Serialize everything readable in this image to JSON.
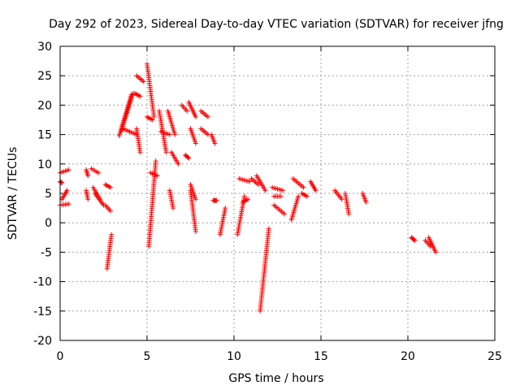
{
  "chart_data": {
    "type": "scatter",
    "title": "Day 292 of 2023, Sidereal Day-to-day VTEC variation (SDTVAR) for receiver jfng",
    "xlabel": "GPS time / hours",
    "ylabel": "SDTVAR / TECUs",
    "xlim": [
      0,
      25
    ],
    "ylim": [
      -20,
      30
    ],
    "xticks": [
      0,
      5,
      10,
      15,
      20,
      25
    ],
    "yticks": [
      -20,
      -15,
      -10,
      -5,
      0,
      5,
      10,
      15,
      20,
      25,
      30
    ],
    "grid": true,
    "marker": "+",
    "color": "#ff0000",
    "segments": [
      {
        "x": [
          0.0,
          0.5
        ],
        "y": [
          8.5,
          9.0
        ]
      },
      {
        "x": [
          0.0,
          0.5
        ],
        "y": [
          3.0,
          3.2
        ]
      },
      {
        "x": [
          0.1,
          0.4
        ],
        "y": [
          4.0,
          5.5
        ]
      },
      {
        "x": [
          0.0,
          0.1
        ],
        "y": [
          7.0,
          6.8
        ]
      },
      {
        "x": [
          1.5,
          1.6
        ],
        "y": [
          9.0,
          8.0
        ]
      },
      {
        "x": [
          1.5,
          1.6
        ],
        "y": [
          5.5,
          4.0
        ]
      },
      {
        "x": [
          1.8,
          2.2
        ],
        "y": [
          9.2,
          8.5
        ]
      },
      {
        "x": [
          1.9,
          2.3
        ],
        "y": [
          6.0,
          4.0
        ]
      },
      {
        "x": [
          2.0,
          2.5
        ],
        "y": [
          5.0,
          3.0
        ]
      },
      {
        "x": [
          2.6,
          2.9
        ],
        "y": [
          3.0,
          2.0
        ]
      },
      {
        "x": [
          2.6,
          2.9
        ],
        "y": [
          6.5,
          6.0
        ]
      },
      {
        "x": [
          2.7,
          2.95
        ],
        "y": [
          -7.8,
          -2.0
        ]
      },
      {
        "x": [
          3.4,
          4.1
        ],
        "y": [
          14.8,
          21.8
        ]
      },
      {
        "x": [
          3.5,
          4.2
        ],
        "y": [
          15.5,
          22.0
        ]
      },
      {
        "x": [
          3.6,
          4.4
        ],
        "y": [
          16.0,
          15.0
        ]
      },
      {
        "x": [
          4.4,
          4.8
        ],
        "y": [
          25.0,
          24.0
        ]
      },
      {
        "x": [
          4.3,
          4.6
        ],
        "y": [
          22.0,
          21.5
        ]
      },
      {
        "x": [
          4.4,
          4.6
        ],
        "y": [
          16.0,
          12.0
        ]
      },
      {
        "x": [
          5.0,
          5.4
        ],
        "y": [
          27.0,
          18.0
        ]
      },
      {
        "x": [
          5.0,
          5.3
        ],
        "y": [
          18.0,
          17.5
        ]
      },
      {
        "x": [
          5.1,
          5.5
        ],
        "y": [
          -4.0,
          10.5
        ]
      },
      {
        "x": [
          5.2,
          5.6
        ],
        "y": [
          8.5,
          8.0
        ]
      },
      {
        "x": [
          5.7,
          6.1
        ],
        "y": [
          19.0,
          12.0
        ]
      },
      {
        "x": [
          5.8,
          6.3
        ],
        "y": [
          15.5,
          15.0
        ]
      },
      {
        "x": [
          6.2,
          6.6
        ],
        "y": [
          19.0,
          15.0
        ]
      },
      {
        "x": [
          6.4,
          6.8
        ],
        "y": [
          12.0,
          10.0
        ]
      },
      {
        "x": [
          6.3,
          6.5
        ],
        "y": [
          5.5,
          2.5
        ]
      },
      {
        "x": [
          7.2,
          7.4
        ],
        "y": [
          11.5,
          11.0
        ]
      },
      {
        "x": [
          7.0,
          7.3
        ],
        "y": [
          20.0,
          19.0
        ]
      },
      {
        "x": [
          7.4,
          7.8
        ],
        "y": [
          20.5,
          18.0
        ]
      },
      {
        "x": [
          7.5,
          7.8
        ],
        "y": [
          16.0,
          13.5
        ]
      },
      {
        "x": [
          7.5,
          7.8
        ],
        "y": [
          6.5,
          4.0
        ]
      },
      {
        "x": [
          7.5,
          7.8
        ],
        "y": [
          5.5,
          -1.5
        ]
      },
      {
        "x": [
          8.1,
          8.5
        ],
        "y": [
          19.0,
          18.0
        ]
      },
      {
        "x": [
          8.1,
          8.5
        ],
        "y": [
          16.0,
          15.0
        ]
      },
      {
        "x": [
          8.7,
          8.9
        ],
        "y": [
          15.0,
          13.5
        ]
      },
      {
        "x": [
          8.8,
          9.0
        ],
        "y": [
          3.8,
          3.8
        ]
      },
      {
        "x": [
          9.2,
          9.5
        ],
        "y": [
          -2.0,
          2.5
        ]
      },
      {
        "x": [
          10.2,
          10.6
        ],
        "y": [
          -2.0,
          4.5
        ]
      },
      {
        "x": [
          10.3,
          10.9
        ],
        "y": [
          7.5,
          7.0
        ]
      },
      {
        "x": [
          10.5,
          10.8
        ],
        "y": [
          3.5,
          4.0
        ]
      },
      {
        "x": [
          11.0,
          11.4
        ],
        "y": [
          7.5,
          6.5
        ]
      },
      {
        "x": [
          11.3,
          11.8
        ],
        "y": [
          8.0,
          5.5
        ]
      },
      {
        "x": [
          11.5,
          12.0
        ],
        "y": [
          -15.0,
          -1.0
        ]
      },
      {
        "x": [
          12.2,
          12.8
        ],
        "y": [
          6.0,
          5.5
        ]
      },
      {
        "x": [
          12.3,
          12.7
        ],
        "y": [
          4.5,
          4.5
        ]
      },
      {
        "x": [
          12.3,
          12.9
        ],
        "y": [
          3.0,
          1.5
        ]
      },
      {
        "x": [
          13.3,
          13.7
        ],
        "y": [
          0.5,
          4.5
        ]
      },
      {
        "x": [
          13.4,
          14.0
        ],
        "y": [
          7.5,
          6.0
        ]
      },
      {
        "x": [
          13.9,
          14.2
        ],
        "y": [
          5.0,
          4.5
        ]
      },
      {
        "x": [
          14.4,
          14.7
        ],
        "y": [
          7.0,
          5.5
        ]
      },
      {
        "x": [
          15.8,
          16.2
        ],
        "y": [
          5.5,
          4.0
        ]
      },
      {
        "x": [
          16.4,
          16.6
        ],
        "y": [
          5.0,
          1.5
        ]
      },
      {
        "x": [
          17.4,
          17.6
        ],
        "y": [
          5.0,
          3.5
        ]
      },
      {
        "x": [
          20.2,
          20.4
        ],
        "y": [
          -2.5,
          -3.0
        ]
      },
      {
        "x": [
          21.0,
          21.3
        ],
        "y": [
          -3.0,
          -4.0
        ]
      },
      {
        "x": [
          21.2,
          21.6
        ],
        "y": [
          -2.5,
          -5.0
        ]
      }
    ]
  }
}
